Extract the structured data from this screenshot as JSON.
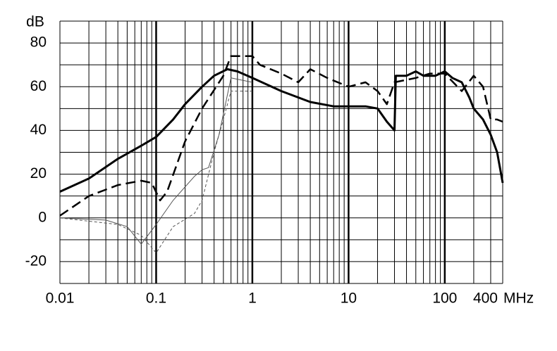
{
  "chart_data": {
    "type": "line",
    "x_scale": "log",
    "y_label": "dB",
    "x_label": "MHz",
    "xlim": [
      0.01,
      400
    ],
    "xticks": [
      0.01,
      0.1,
      1,
      10,
      100,
      400
    ],
    "xgrid": [
      0.02,
      0.03,
      0.04,
      0.05,
      0.06,
      0.07,
      0.08,
      0.09,
      0.2,
      0.3,
      0.4,
      0.5,
      0.6,
      0.7,
      0.8,
      0.9,
      2,
      3,
      4,
      5,
      6,
      7,
      8,
      9,
      20,
      30,
      40,
      50,
      60,
      70,
      80,
      90,
      200,
      300
    ],
    "ylim": [
      -30,
      90
    ],
    "yticks": [
      -20,
      0,
      20,
      40,
      60,
      80
    ],
    "ygrid": [
      -30,
      -20,
      -10,
      0,
      10,
      20,
      30,
      40,
      50,
      60,
      70,
      80,
      90
    ],
    "series": [
      {
        "color": "#000000",
        "width": 3,
        "dashed": false,
        "x": [
          0.01,
          0.02,
          0.04,
          0.07,
          0.1,
          0.15,
          0.2,
          0.3,
          0.4,
          0.55,
          0.7,
          1,
          2,
          4,
          7,
          10,
          15,
          20,
          25,
          30,
          31,
          40,
          50,
          60,
          80,
          100,
          120,
          150,
          180,
          200,
          250,
          300,
          350,
          400
        ],
        "values": [
          12,
          18,
          27,
          33,
          37,
          45,
          52,
          60,
          65,
          68,
          67,
          64,
          58,
          53,
          51,
          51,
          51,
          50,
          44,
          40,
          65,
          65,
          67,
          65,
          65,
          67,
          64,
          62,
          55,
          50,
          45,
          38,
          30,
          16
        ]
      },
      {
        "color": "#000000",
        "width": 2.5,
        "dashed": true,
        "x": [
          0.01,
          0.02,
          0.04,
          0.07,
          0.09,
          0.11,
          0.13,
          0.2,
          0.3,
          0.5,
          0.6,
          1,
          1.2,
          2,
          3,
          4,
          6,
          10,
          15,
          20,
          25,
          30,
          50,
          70,
          100,
          150,
          200,
          250,
          300,
          350,
          400
        ],
        "values": [
          1,
          10,
          15,
          17,
          16,
          8,
          12,
          35,
          50,
          65,
          74,
          74,
          70,
          66,
          62,
          68,
          64,
          60,
          62,
          58,
          52,
          62,
          64,
          66,
          66,
          58,
          65,
          60,
          45,
          45,
          44
        ]
      },
      {
        "color": "#555555",
        "width": 1,
        "dashed": false,
        "x": [
          0.01,
          0.03,
          0.05,
          0.07,
          0.1,
          0.15,
          0.25,
          0.3,
          0.35,
          0.45,
          0.6,
          1
        ],
        "values": [
          0,
          -1,
          -4,
          -12,
          -3,
          8,
          19,
          22,
          23,
          38,
          64,
          62
        ]
      },
      {
        "color": "#555555",
        "width": 1,
        "dashed": true,
        "x": [
          0.01,
          0.04,
          0.07,
          0.1,
          0.15,
          0.25,
          0.3,
          0.4,
          0.5,
          0.6,
          1
        ],
        "values": [
          0,
          -3,
          -8,
          -16,
          -4,
          2,
          8,
          30,
          45,
          58,
          58
        ]
      }
    ]
  }
}
